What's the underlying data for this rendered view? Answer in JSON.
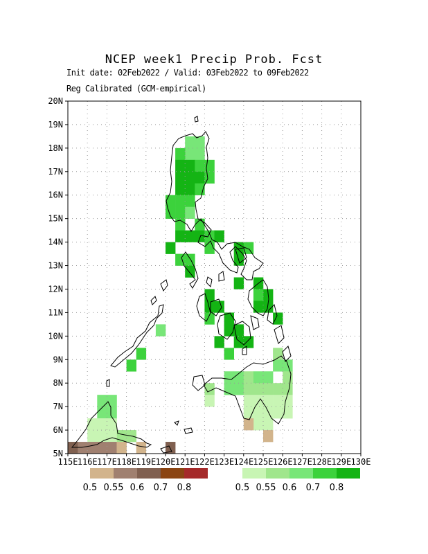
{
  "header": {
    "title": "NCEP week1 Precip Prob. Fcst",
    "subtitle_dates": "Init date: 02Feb2022 / Valid: 03Feb2022 to 09Feb2022",
    "subtitle_method": "Reg Calibrated (GCM-empirical)"
  },
  "axes": {
    "x_ticks": [
      "115E",
      "116E",
      "117E",
      "118E",
      "119E",
      "120E",
      "121E",
      "122E",
      "123E",
      "124E",
      "125E",
      "126E",
      "127E",
      "128E",
      "129E",
      "130E"
    ],
    "y_ticks": [
      "5N",
      "6N",
      "7N",
      "8N",
      "9N",
      "10N",
      "11N",
      "12N",
      "13N",
      "14N",
      "15N",
      "16N",
      "17N",
      "18N",
      "19N",
      "20N"
    ],
    "lon_range": [
      115,
      130
    ],
    "lat_range": [
      5,
      20
    ],
    "grid": true
  },
  "legend_dry": {
    "labels": [
      "0.5",
      "0.55",
      "0.6",
      "0.7",
      "0.8"
    ],
    "colors": [
      "#d2b48c",
      "#a08070",
      "#806050",
      "#8b4513",
      "#a52a2a"
    ]
  },
  "legend_wet": {
    "labels": [
      "0.5",
      "0.55",
      "0.6",
      "0.7",
      "0.8"
    ],
    "colors": [
      "#c8f5b4",
      "#a0e68c",
      "#78e678",
      "#3cd23c",
      "#14b414"
    ]
  }
}
